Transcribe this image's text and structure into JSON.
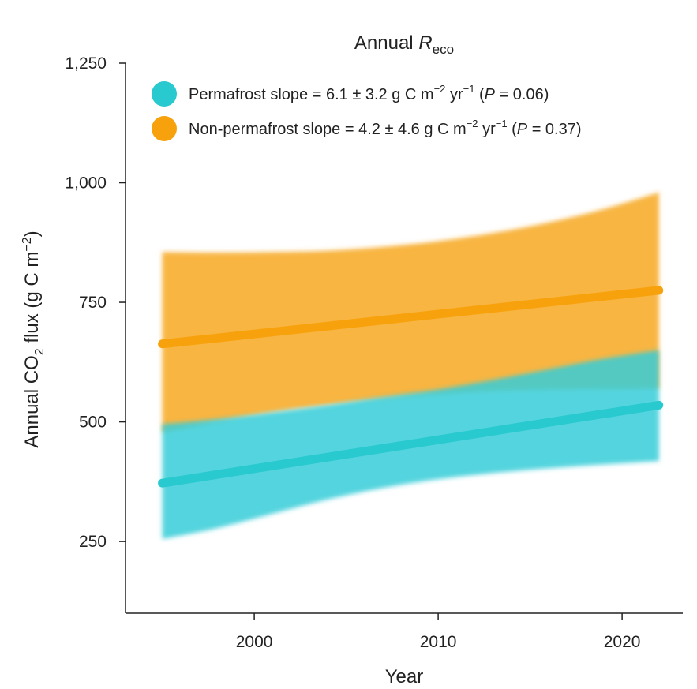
{
  "chart_data": {
    "type": "line",
    "title": "Annual ",
    "title_italic": "R",
    "title_sub": "eco",
    "xlabel": "Year",
    "ylabel_parts": {
      "pre": "Annual CO",
      "sub": "2",
      "mid": " flux (g C m",
      "sup": "−2",
      "post": ")"
    },
    "xlim": [
      1993,
      2023.3
    ],
    "ylim": [
      100,
      1250
    ],
    "x_ticks": [
      2000,
      2010,
      2020
    ],
    "x_tick_labels": [
      "2000",
      "2010",
      "2020"
    ],
    "y_ticks": [
      250,
      500,
      750,
      1000,
      1250
    ],
    "y_tick_labels": [
      "250",
      "500",
      "750",
      "1,000",
      "1,250"
    ],
    "grid": false,
    "legend_position": "top-left",
    "series": [
      {
        "name": "Permafrost",
        "color": "#28c9cf",
        "band_color": "#35ccd8",
        "line": {
          "x": [
            1995,
            2022
          ],
          "y": [
            372,
            535
          ]
        },
        "band": {
          "x": [
            1995,
            1998,
            2001,
            2004,
            2007,
            2010,
            2013,
            2016,
            2019,
            2022
          ],
          "upper": [
            495,
            506,
            520,
            535,
            552,
            568,
            588,
            610,
            632,
            650
          ],
          "lower": [
            255,
            278,
            308,
            338,
            362,
            380,
            393,
            403,
            411,
            418
          ]
        },
        "legend": {
          "prefix": "Permafrost slope = 6.1 ± 3.2 g C m",
          "sup1": "−2",
          "mid": " yr",
          "sup2": "−1",
          "p_open": " (",
          "p_italic": "P",
          "p_value": " = 0.06)"
        }
      },
      {
        "name": "Non-permafrost",
        "color": "#f7a20d",
        "band_color": "#f7ad2f",
        "line": {
          "x": [
            1995,
            2022
          ],
          "y": [
            663,
            775
          ]
        },
        "band": {
          "x": [
            1995,
            1998,
            2001,
            2004,
            2007,
            2010,
            2013,
            2016,
            2019,
            2022
          ],
          "upper": [
            855,
            854,
            855,
            858,
            866,
            878,
            895,
            917,
            945,
            980
          ],
          "lower": [
            478,
            500,
            520,
            535,
            548,
            558,
            565,
            568,
            569,
            570
          ]
        },
        "legend": {
          "prefix": "Non-permafrost slope = 4.2 ± 4.6 g C m",
          "sup1": "−2",
          "mid": " yr",
          "sup2": "−1",
          "p_open": " (",
          "p_italic": "P",
          "p_value": " = 0.37)"
        }
      }
    ]
  }
}
